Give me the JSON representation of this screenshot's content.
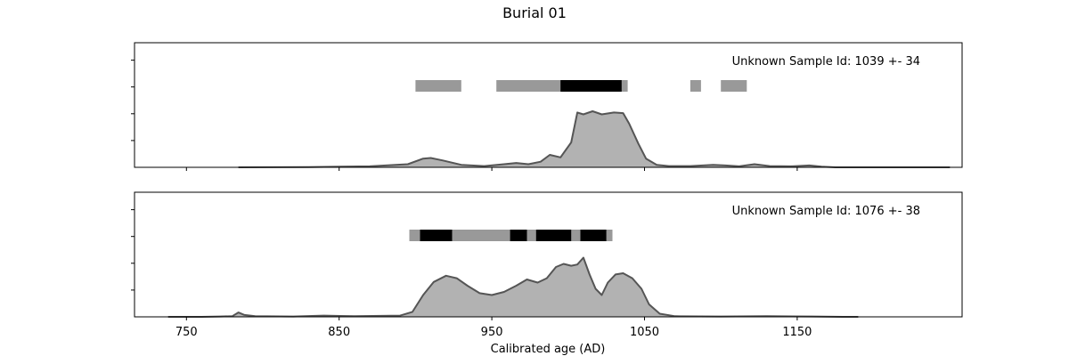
{
  "chart_data": {
    "type": "area",
    "title": "Burial 01",
    "xlabel": "Calibrated age (AD)",
    "xlim": [
      716,
      1258
    ],
    "x_ticks": [
      750,
      850,
      950,
      1050,
      1150
    ],
    "grid": false,
    "panels": [
      {
        "annotation": "Unknown Sample Id: 1039 +- 34",
        "curve_color": "#555555",
        "fill_color": "#b2b2b2",
        "ylim": [
          0,
          1.0
        ],
        "range_bars": {
          "outer_color": "#999999",
          "inner_color": "#000000",
          "outer": [
            [
              900,
              930
            ],
            [
              953,
              1039
            ],
            [
              1080,
              1087
            ],
            [
              1100,
              1117
            ]
          ],
          "inner": [
            [
              995,
              1035
            ]
          ]
        },
        "density": [
          [
            784,
            0.0
          ],
          [
            830,
            0.005
          ],
          [
            870,
            0.015
          ],
          [
            895,
            0.05
          ],
          [
            905,
            0.14
          ],
          [
            910,
            0.15
          ],
          [
            918,
            0.11
          ],
          [
            930,
            0.04
          ],
          [
            945,
            0.02
          ],
          [
            958,
            0.05
          ],
          [
            966,
            0.07
          ],
          [
            974,
            0.05
          ],
          [
            982,
            0.09
          ],
          [
            988,
            0.2
          ],
          [
            995,
            0.16
          ],
          [
            1002,
            0.4
          ],
          [
            1006,
            0.88
          ],
          [
            1010,
            0.85
          ],
          [
            1016,
            0.9
          ],
          [
            1022,
            0.85
          ],
          [
            1030,
            0.88
          ],
          [
            1036,
            0.87
          ],
          [
            1040,
            0.7
          ],
          [
            1046,
            0.38
          ],
          [
            1051,
            0.14
          ],
          [
            1058,
            0.04
          ],
          [
            1066,
            0.02
          ],
          [
            1080,
            0.02
          ],
          [
            1095,
            0.04
          ],
          [
            1103,
            0.03
          ],
          [
            1112,
            0.015
          ],
          [
            1122,
            0.05
          ],
          [
            1132,
            0.02
          ],
          [
            1146,
            0.015
          ],
          [
            1158,
            0.03
          ],
          [
            1166,
            0.01
          ],
          [
            1175,
            0.0
          ],
          [
            1250,
            0.0
          ]
        ]
      },
      {
        "annotation": "Unknown Sample Id: 1076 +- 38",
        "curve_color": "#555555",
        "fill_color": "#b2b2b2",
        "ylim": [
          0,
          1.0
        ],
        "range_bars": {
          "outer_color": "#999999",
          "inner_color": "#000000",
          "outer": [
            [
              896,
              1029
            ]
          ],
          "inner": [
            [
              903,
              924
            ],
            [
              962,
              973
            ],
            [
              979,
              1002
            ],
            [
              1008,
              1025
            ]
          ]
        },
        "density": [
          [
            738,
            0.0
          ],
          [
            760,
            0.0
          ],
          [
            772,
            0.005
          ],
          [
            780,
            0.01
          ],
          [
            784,
            0.07
          ],
          [
            788,
            0.03
          ],
          [
            795,
            0.01
          ],
          [
            820,
            0.005
          ],
          [
            840,
            0.02
          ],
          [
            860,
            0.01
          ],
          [
            890,
            0.02
          ],
          [
            898,
            0.08
          ],
          [
            905,
            0.35
          ],
          [
            912,
            0.56
          ],
          [
            920,
            0.66
          ],
          [
            927,
            0.62
          ],
          [
            934,
            0.5
          ],
          [
            942,
            0.38
          ],
          [
            950,
            0.35
          ],
          [
            958,
            0.4
          ],
          [
            966,
            0.5
          ],
          [
            973,
            0.6
          ],
          [
            980,
            0.55
          ],
          [
            986,
            0.62
          ],
          [
            992,
            0.8
          ],
          [
            997,
            0.85
          ],
          [
            1002,
            0.82
          ],
          [
            1006,
            0.84
          ],
          [
            1010,
            0.95
          ],
          [
            1014,
            0.68
          ],
          [
            1018,
            0.45
          ],
          [
            1022,
            0.35
          ],
          [
            1026,
            0.55
          ],
          [
            1031,
            0.68
          ],
          [
            1036,
            0.7
          ],
          [
            1042,
            0.62
          ],
          [
            1048,
            0.45
          ],
          [
            1053,
            0.2
          ],
          [
            1060,
            0.05
          ],
          [
            1070,
            0.01
          ],
          [
            1100,
            0.005
          ],
          [
            1130,
            0.01
          ],
          [
            1160,
            0.005
          ],
          [
            1180,
            0.0
          ],
          [
            1190,
            0.0
          ]
        ]
      }
    ]
  }
}
